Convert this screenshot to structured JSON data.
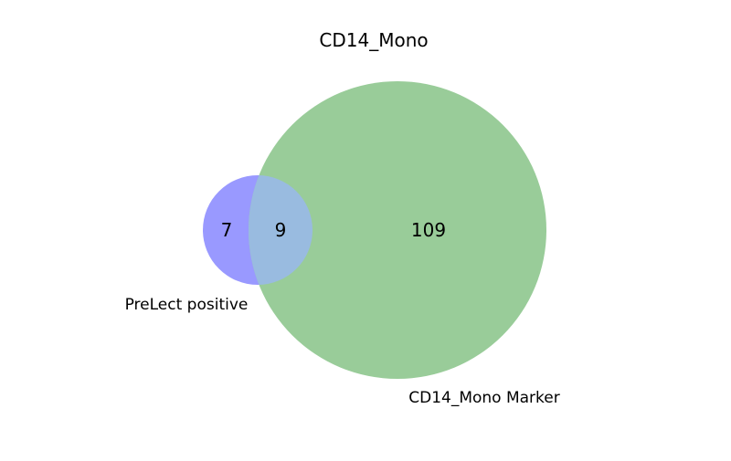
{
  "title": "CD14_Mono",
  "sets": [
    {
      "name": "PreLect positive",
      "color": "#9999ff"
    },
    {
      "name": "CD14_Mono Marker",
      "color": "#99cc99"
    }
  ],
  "overlap_color": "#99bbe0",
  "counts": {
    "only_a": "7",
    "both": "9",
    "only_b": "109"
  }
}
